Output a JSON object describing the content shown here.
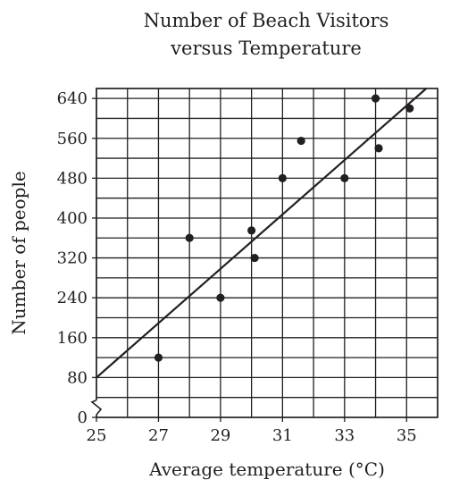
{
  "chart_data": {
    "type": "scatter",
    "title_lines": [
      "Number of Beach Visitors",
      "versus Temperature"
    ],
    "xlabel": "Average temperature (°C)",
    "ylabel": "Number of people",
    "xlim": [
      25,
      36
    ],
    "ylim": [
      0,
      660
    ],
    "x_grid_step": 1,
    "y_grid_step": 40,
    "x_ticks": [
      25,
      27,
      29,
      31,
      33,
      35
    ],
    "y_ticks": [
      0,
      80,
      160,
      240,
      320,
      400,
      480,
      560,
      640
    ],
    "axis_break_below": 40,
    "grid": true,
    "points": [
      {
        "x": 27,
        "y": 120
      },
      {
        "x": 28,
        "y": 360
      },
      {
        "x": 29,
        "y": 240
      },
      {
        "x": 30,
        "y": 375
      },
      {
        "x": 30.1,
        "y": 320
      },
      {
        "x": 31,
        "y": 480
      },
      {
        "x": 31.6,
        "y": 555
      },
      {
        "x": 33,
        "y": 480
      },
      {
        "x": 34,
        "y": 640
      },
      {
        "x": 34.1,
        "y": 540
      },
      {
        "x": 35.1,
        "y": 620
      }
    ],
    "trend_line": {
      "x": [
        25,
        36
      ],
      "y": [
        80,
        680
      ]
    }
  }
}
